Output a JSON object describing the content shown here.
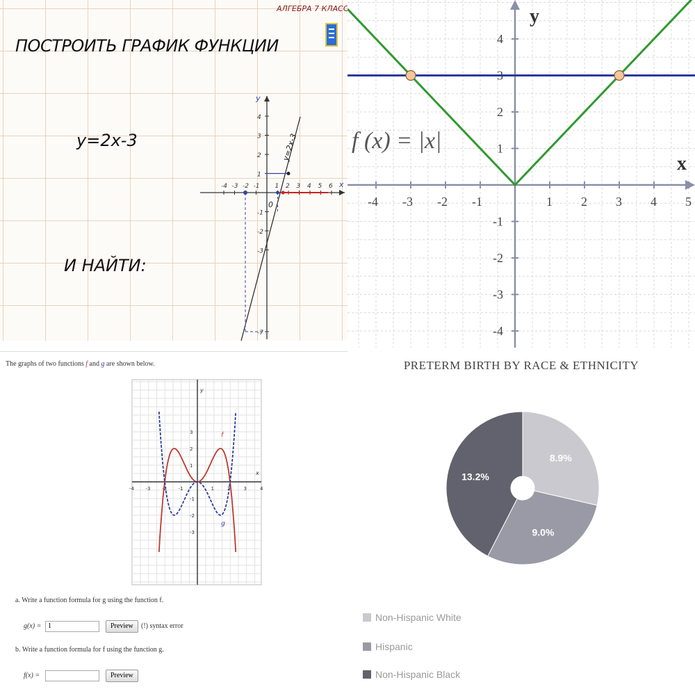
{
  "q1": {
    "header": "АЛГЕБРА 7 КЛАСС",
    "title": "ПОСТРОИТЬ ГРАФИК ФУНКЦИИ",
    "equation": "y=2x-3",
    "find": "И НАЙТИ:",
    "axis_x": "x",
    "axis_y": "y",
    "origin": "0",
    "line_label": "y=2x-3",
    "x_ticks": [
      "-4",
      "-3",
      "-2",
      "-1",
      "1",
      "2",
      "3",
      "4",
      "5",
      "6"
    ],
    "y_ticks": [
      "4",
      "3",
      "2",
      "1",
      "-1",
      "-2",
      "-3",
      "-7"
    ],
    "colors": {
      "line": "#222222",
      "dashed": "#3344aa",
      "segment": "#cc2222"
    }
  },
  "q2": {
    "axis_x": "x",
    "axis_y": "y",
    "formula": "f (x) = |x|",
    "x_ticks": [
      "-4",
      "-3",
      "-2",
      "-1",
      "1",
      "2",
      "3",
      "4",
      "5"
    ],
    "y_ticks": [
      "4",
      "3",
      "2",
      "1",
      "-1",
      "-2",
      "-3",
      "-4"
    ],
    "colors": {
      "abs": "#2f9a2f",
      "horizontal": "#2b3a9a",
      "point": "#f4c79a"
    }
  },
  "q3": {
    "intro_pre": "The graphs of two functions",
    "intro_f": "f",
    "intro_and": "and",
    "intro_g": "g",
    "intro_post": "are shown below.",
    "label_f": "f",
    "label_g": "g",
    "axis_y": "y",
    "axis_x": "x",
    "x_ticks": [
      "-4",
      "-3",
      "-2",
      "-1",
      "1",
      "2",
      "3",
      "4"
    ],
    "y_ticks": [
      "3",
      "2",
      "1",
      "-1",
      "-2",
      "-3"
    ],
    "q_a": "a. Write a function formula for g using the function f.",
    "g_label": "g(x) =",
    "g_value": "1",
    "preview": "Preview",
    "syntax": "(!) syntax error",
    "q_b": "b. Write a function formula for f using the function g.",
    "f_label": "f(x) =",
    "f_value": "",
    "colors": {
      "f": "#c0392b",
      "g": "#2c3e9f"
    }
  },
  "q4": {
    "chart_data": {
      "type": "pie",
      "title": "PRETERM BIRTH BY RACE & ETHNICITY",
      "categories": [
        "Non-Hispanic White",
        "Hispanic",
        "Non-Hispanic Black"
      ],
      "values": [
        8.9,
        9.0,
        13.2
      ],
      "labels": [
        "8.9%",
        "9.0%",
        "13.2%"
      ],
      "colors": [
        "#c9c9cf",
        "#9a9aa6",
        "#62626e"
      ],
      "legend": "bottom-left"
    }
  }
}
